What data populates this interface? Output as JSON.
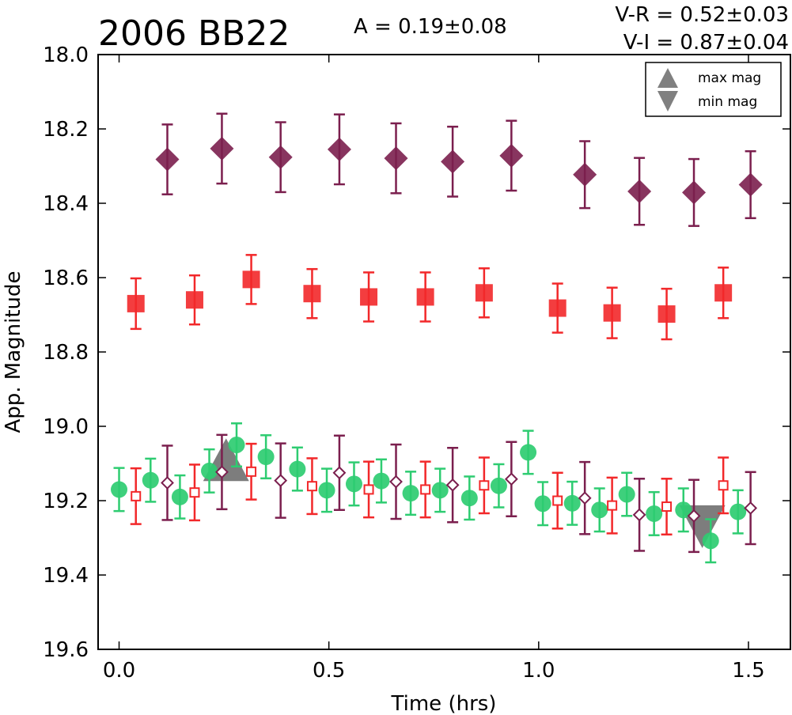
{
  "chart_data": {
    "type": "scatter",
    "title": "2006 BB22",
    "annotations": {
      "amplitude": "A  = 0.19±0.08",
      "v_r": "V-R = 0.52±0.03",
      "v_i": "V-I  = 0.87±0.04"
    },
    "xlabel": "Time (hrs)",
    "ylabel": "App. Magnitude",
    "xlim": [
      -0.05,
      1.6
    ],
    "ylim": [
      19.6,
      18.0
    ],
    "y_inverted": true,
    "x_ticks": [
      0.0,
      0.5,
      1.0,
      1.5
    ],
    "x_tick_labels": [
      "0.0",
      "0.5",
      "1.0",
      "1.5"
    ],
    "y_ticks": [
      18.0,
      18.2,
      18.4,
      18.6,
      18.8,
      19.0,
      19.2,
      19.4,
      19.6
    ],
    "y_tick_labels": [
      "18.0",
      "18.2",
      "18.4",
      "18.6",
      "18.8",
      "19.0",
      "19.2",
      "19.4",
      "19.6"
    ],
    "grid": false,
    "legend_position": "top-right",
    "colors": {
      "green": "#2ecc71",
      "red": "#f2282a",
      "purple": "#7b1f4e",
      "extrema": "#666666"
    },
    "legend": [
      {
        "label": "max mag",
        "marker": "triangle-up"
      },
      {
        "label": "min mag",
        "marker": "triangle-down"
      }
    ],
    "series": [
      {
        "marker": "diamond-filled",
        "color_key": "purple",
        "points": [
          {
            "x": 0.115,
            "y": 18.282,
            "err": 0.094
          },
          {
            "x": 0.245,
            "y": 18.253,
            "err": 0.094
          },
          {
            "x": 0.385,
            "y": 18.276,
            "err": 0.094
          },
          {
            "x": 0.525,
            "y": 18.255,
            "err": 0.094
          },
          {
            "x": 0.66,
            "y": 18.279,
            "err": 0.094
          },
          {
            "x": 0.795,
            "y": 18.288,
            "err": 0.094
          },
          {
            "x": 0.935,
            "y": 18.272,
            "err": 0.094
          },
          {
            "x": 1.11,
            "y": 18.323,
            "err": 0.09
          },
          {
            "x": 1.24,
            "y": 18.368,
            "err": 0.09
          },
          {
            "x": 1.37,
            "y": 18.371,
            "err": 0.09
          },
          {
            "x": 1.505,
            "y": 18.35,
            "err": 0.09
          }
        ]
      },
      {
        "marker": "square-filled",
        "color_key": "red",
        "points": [
          {
            "x": 0.04,
            "y": 18.67,
            "err": 0.068
          },
          {
            "x": 0.18,
            "y": 18.66,
            "err": 0.066
          },
          {
            "x": 0.315,
            "y": 18.605,
            "err": 0.066
          },
          {
            "x": 0.46,
            "y": 18.643,
            "err": 0.066
          },
          {
            "x": 0.595,
            "y": 18.652,
            "err": 0.066
          },
          {
            "x": 0.73,
            "y": 18.652,
            "err": 0.066
          },
          {
            "x": 0.87,
            "y": 18.641,
            "err": 0.066
          },
          {
            "x": 1.045,
            "y": 18.682,
            "err": 0.066
          },
          {
            "x": 1.175,
            "y": 18.695,
            "err": 0.068
          },
          {
            "x": 1.305,
            "y": 18.698,
            "err": 0.068
          },
          {
            "x": 1.44,
            "y": 18.641,
            "err": 0.068
          }
        ]
      },
      {
        "marker": "circle-filled",
        "color_key": "green",
        "points": [
          {
            "x": 0.0,
            "y": 19.17,
            "err": 0.058
          },
          {
            "x": 0.075,
            "y": 19.145,
            "err": 0.058
          },
          {
            "x": 0.145,
            "y": 19.19,
            "err": 0.058
          },
          {
            "x": 0.215,
            "y": 19.12,
            "err": 0.058
          },
          {
            "x": 0.28,
            "y": 19.05,
            "err": 0.058
          },
          {
            "x": 0.35,
            "y": 19.082,
            "err": 0.058
          },
          {
            "x": 0.425,
            "y": 19.115,
            "err": 0.058
          },
          {
            "x": 0.495,
            "y": 19.172,
            "err": 0.058
          },
          {
            "x": 0.56,
            "y": 19.155,
            "err": 0.058
          },
          {
            "x": 0.625,
            "y": 19.147,
            "err": 0.058
          },
          {
            "x": 0.695,
            "y": 19.18,
            "err": 0.058
          },
          {
            "x": 0.765,
            "y": 19.172,
            "err": 0.058
          },
          {
            "x": 0.835,
            "y": 19.193,
            "err": 0.058
          },
          {
            "x": 0.905,
            "y": 19.16,
            "err": 0.058
          },
          {
            "x": 0.975,
            "y": 19.07,
            "err": 0.058
          },
          {
            "x": 1.01,
            "y": 19.208,
            "err": 0.058
          },
          {
            "x": 1.08,
            "y": 19.207,
            "err": 0.058
          },
          {
            "x": 1.145,
            "y": 19.225,
            "err": 0.058
          },
          {
            "x": 1.21,
            "y": 19.183,
            "err": 0.058
          },
          {
            "x": 1.275,
            "y": 19.235,
            "err": 0.058
          },
          {
            "x": 1.345,
            "y": 19.225,
            "err": 0.058
          },
          {
            "x": 1.41,
            "y": 19.308,
            "err": 0.058
          },
          {
            "x": 1.475,
            "y": 19.23,
            "err": 0.058
          }
        ]
      },
      {
        "marker": "square-open",
        "color_key": "red",
        "points": [
          {
            "x": 0.04,
            "y": 19.188,
            "err": 0.075
          },
          {
            "x": 0.18,
            "y": 19.178,
            "err": 0.075
          },
          {
            "x": 0.315,
            "y": 19.122,
            "err": 0.075
          },
          {
            "x": 0.46,
            "y": 19.161,
            "err": 0.075
          },
          {
            "x": 0.595,
            "y": 19.17,
            "err": 0.075
          },
          {
            "x": 0.73,
            "y": 19.17,
            "err": 0.075
          },
          {
            "x": 0.87,
            "y": 19.159,
            "err": 0.075
          },
          {
            "x": 1.045,
            "y": 19.2,
            "err": 0.075
          },
          {
            "x": 1.175,
            "y": 19.213,
            "err": 0.075
          },
          {
            "x": 1.305,
            "y": 19.216,
            "err": 0.075
          },
          {
            "x": 1.44,
            "y": 19.159,
            "err": 0.075
          }
        ]
      },
      {
        "marker": "diamond-open",
        "color_key": "purple",
        "points": [
          {
            "x": 0.115,
            "y": 19.152,
            "err": 0.1
          },
          {
            "x": 0.245,
            "y": 19.123,
            "err": 0.1
          },
          {
            "x": 0.385,
            "y": 19.146,
            "err": 0.1
          },
          {
            "x": 0.525,
            "y": 19.125,
            "err": 0.1
          },
          {
            "x": 0.66,
            "y": 19.149,
            "err": 0.1
          },
          {
            "x": 0.795,
            "y": 19.158,
            "err": 0.1
          },
          {
            "x": 0.935,
            "y": 19.142,
            "err": 0.1
          },
          {
            "x": 1.11,
            "y": 19.193,
            "err": 0.097
          },
          {
            "x": 1.24,
            "y": 19.238,
            "err": 0.097
          },
          {
            "x": 1.37,
            "y": 19.241,
            "err": 0.097
          },
          {
            "x": 1.505,
            "y": 19.22,
            "err": 0.097
          }
        ]
      }
    ],
    "extrema": [
      {
        "type": "max mag",
        "marker": "triangle-up",
        "x": 0.255,
        "y": 19.09
      },
      {
        "type": "min mag",
        "marker": "triangle-down",
        "x": 1.39,
        "y": 19.27
      }
    ]
  }
}
